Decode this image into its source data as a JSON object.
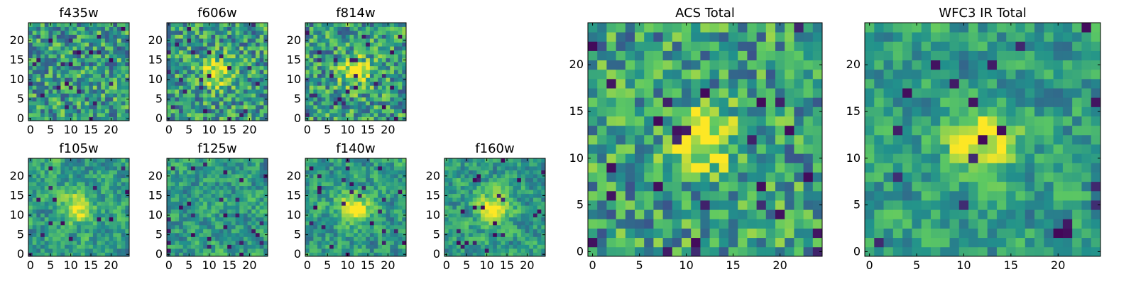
{
  "chart_data": [
    {
      "type": "heatmap",
      "title": "f435w",
      "x_ticks": [
        "0",
        "5",
        "10",
        "15",
        "20"
      ],
      "y_ticks": [
        "0",
        "5",
        "10",
        "15",
        "20"
      ],
      "xlim": [
        -0.5,
        24.5
      ],
      "ylim": [
        -0.5,
        24.5
      ],
      "grid_size": 25,
      "colormap": "viridis",
      "pattern": "noise",
      "seed": 11
    },
    {
      "type": "heatmap",
      "title": "f606w",
      "x_ticks": [
        "0",
        "5",
        "10",
        "15",
        "20"
      ],
      "y_ticks": [
        "0",
        "5",
        "10",
        "15",
        "20"
      ],
      "xlim": [
        -0.5,
        24.5
      ],
      "ylim": [
        -0.5,
        24.5
      ],
      "grid_size": 25,
      "colormap": "viridis",
      "pattern": "noise+center-blob",
      "seed": 23
    },
    {
      "type": "heatmap",
      "title": "f814w",
      "x_ticks": [
        "0",
        "5",
        "10",
        "15",
        "20"
      ],
      "y_ticks": [
        "0",
        "5",
        "10",
        "15",
        "20"
      ],
      "xlim": [
        -0.5,
        24.5
      ],
      "ylim": [
        -0.5,
        24.5
      ],
      "grid_size": 25,
      "colormap": "viridis",
      "pattern": "noise+center-blob",
      "seed": 37
    },
    {
      "type": "heatmap",
      "title": "f105w",
      "x_ticks": [
        "0",
        "5",
        "10",
        "15",
        "20"
      ],
      "y_ticks": [
        "0",
        "5",
        "10",
        "15",
        "20"
      ],
      "xlim": [
        -0.5,
        24.5
      ],
      "ylim": [
        -0.5,
        24.5
      ],
      "grid_size": 25,
      "colormap": "viridis",
      "pattern": "smooth-noise+center-blob",
      "seed": 41
    },
    {
      "type": "heatmap",
      "title": "f125w",
      "x_ticks": [
        "0",
        "5",
        "10",
        "15",
        "20"
      ],
      "y_ticks": [
        "0",
        "5",
        "10",
        "15",
        "20"
      ],
      "xlim": [
        -0.5,
        24.5
      ],
      "ylim": [
        -0.5,
        24.5
      ],
      "grid_size": 25,
      "colormap": "viridis",
      "pattern": "smooth-noise",
      "seed": 53
    },
    {
      "type": "heatmap",
      "title": "f140w",
      "x_ticks": [
        "0",
        "5",
        "10",
        "15",
        "20"
      ],
      "y_ticks": [
        "0",
        "5",
        "10",
        "15",
        "20"
      ],
      "xlim": [
        -0.5,
        24.5
      ],
      "ylim": [
        -0.5,
        24.5
      ],
      "grid_size": 25,
      "colormap": "viridis",
      "pattern": "smooth-noise+center-blob",
      "seed": 67
    },
    {
      "type": "heatmap",
      "title": "f160w",
      "x_ticks": [
        "0",
        "5",
        "10",
        "15",
        "20"
      ],
      "y_ticks": [
        "0",
        "5",
        "10",
        "15",
        "20"
      ],
      "xlim": [
        -0.5,
        24.5
      ],
      "ylim": [
        -0.5,
        24.5
      ],
      "grid_size": 25,
      "colormap": "viridis",
      "pattern": "smooth-noise+center-blob",
      "seed": 71
    },
    {
      "type": "heatmap",
      "title": "ACS Total",
      "x_ticks": [
        "0",
        "5",
        "10",
        "15",
        "20"
      ],
      "y_ticks": [
        "0",
        "5",
        "10",
        "15",
        "20"
      ],
      "xlim": [
        -0.5,
        24.5
      ],
      "ylim": [
        -0.5,
        24.5
      ],
      "grid_size": 25,
      "colormap": "viridis",
      "pattern": "noise+center-blob",
      "seed": 83
    },
    {
      "type": "heatmap",
      "title": "WFC3 IR Total",
      "x_ticks": [
        "0",
        "5",
        "10",
        "15",
        "20"
      ],
      "y_ticks": [
        "0",
        "5",
        "10",
        "15",
        "20"
      ],
      "xlim": [
        -0.5,
        24.5
      ],
      "ylim": [
        -0.5,
        24.5
      ],
      "grid_size": 25,
      "colormap": "viridis",
      "pattern": "smooth-noise+center-blob",
      "seed": 97
    }
  ],
  "colors": {
    "viridis": [
      "#440154",
      "#3b528b",
      "#21918c",
      "#5ec962",
      "#fde725"
    ]
  }
}
